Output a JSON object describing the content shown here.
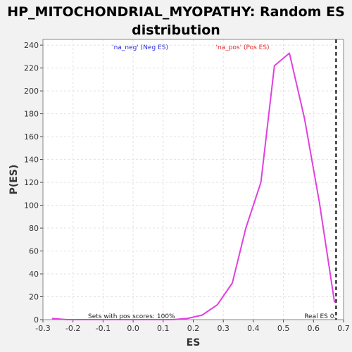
{
  "chart_data": {
    "type": "line",
    "title_line1": "HP_MITOCHONDRIAL_MYOPATHY: Random ES",
    "title_line2": "distribution",
    "xlabel": "ES",
    "ylabel": "P(ES)",
    "xlim": [
      -0.3,
      0.7
    ],
    "ylim": [
      0,
      245
    ],
    "x_ticks": [
      -0.3,
      -0.2,
      -0.1,
      0.0,
      0.1,
      0.2,
      0.3,
      0.4,
      0.5,
      0.6,
      0.7
    ],
    "x_tick_labels": [
      "-0.3",
      "-0.2",
      "-0.1",
      "0.0",
      "0.1",
      "0.2",
      "0.3",
      "0.4",
      "0.5",
      "0.6",
      "0.7"
    ],
    "y_ticks": [
      0,
      20,
      40,
      60,
      80,
      100,
      120,
      140,
      160,
      180,
      200,
      220,
      240
    ],
    "y_tick_labels": [
      "0",
      "20",
      "40",
      "60",
      "80",
      "100",
      "120",
      "140",
      "160",
      "180",
      "200",
      "220",
      "240"
    ],
    "grid": true,
    "series": [
      {
        "color": "#e040e0",
        "x": [
          -0.27,
          -0.22,
          -0.17,
          -0.12,
          -0.07,
          -0.02,
          0.03,
          0.08,
          0.13,
          0.18,
          0.23,
          0.28,
          0.33,
          0.375,
          0.425,
          0.47,
          0.52,
          0.57,
          0.62,
          0.67
        ],
        "y": [
          1,
          0,
          0,
          0,
          0,
          0,
          0,
          0,
          0,
          1,
          4,
          13,
          32,
          80,
          120,
          222,
          233,
          176,
          102,
          15
        ]
      }
    ],
    "legend": [
      {
        "label": "'na_neg' (Neg ES)",
        "color": "#2a2ae0"
      },
      {
        "label": "'na_pos' (Pos ES)",
        "color": "#e02a2a"
      }
    ],
    "real_es": {
      "x": 0.675,
      "label": "Real ES 0."
    },
    "annotation": "Sets with pos scores: 100%"
  }
}
